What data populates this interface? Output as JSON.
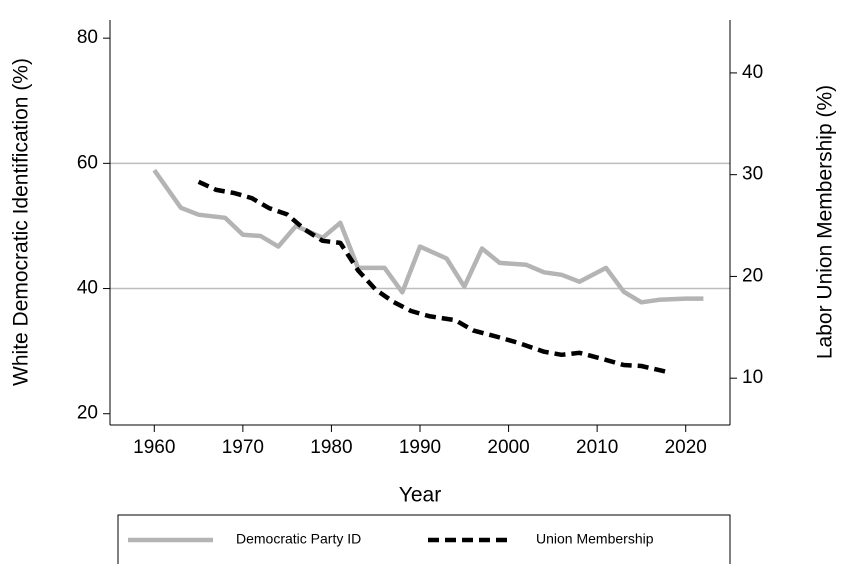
{
  "chart_data": {
    "type": "line",
    "x_label": "Year",
    "y_label": "White Democratic Identification (%)",
    "y2_label": "Labor Union Membership (%)",
    "xlim": [
      1955,
      2025
    ],
    "xticks": [
      1960,
      1970,
      1980,
      1990,
      2000,
      2010,
      2020
    ],
    "ylim": [
      18.2,
      82.9
    ],
    "yticks": [
      20,
      40,
      60,
      80
    ],
    "y2lim": [
      5.4,
      45.2
    ],
    "y2ticks": [
      10,
      20,
      30,
      40
    ],
    "grid": true,
    "legend": "bottom",
    "series": [
      {
        "name": "Democratic Party ID",
        "color": "#b4b4b4",
        "dashed": false,
        "x": [
          1960,
          1963,
          1965,
          1968,
          1970,
          1972,
          1974,
          1976,
          1979,
          1981,
          1983,
          1986,
          1988,
          1990,
          1993,
          1995,
          1997,
          1999,
          2002,
          2004,
          2006,
          2008,
          2011,
          2013,
          2015,
          2017,
          2020,
          2022
        ],
        "values": [
          58.9,
          52.9,
          51.8,
          51.3,
          48.6,
          48.4,
          46.7,
          50.0,
          48.1,
          50.5,
          43.3,
          43.3,
          39.4,
          46.7,
          44.8,
          40.3,
          46.4,
          44.1,
          43.8,
          42.6,
          42.2,
          41.1,
          43.3,
          39.5,
          37.8,
          38.2,
          38.4,
          38.4
        ]
      },
      {
        "name": "Union Membership",
        "color": "#000000",
        "dashed": true,
        "axis": "y2",
        "x": [
          1965,
          1967,
          1969,
          1971,
          1973,
          1975,
          1977,
          1979,
          1981,
          1983,
          1985,
          1987,
          1989,
          1991,
          1994,
          1996,
          1999,
          2001,
          2004,
          2006,
          2008,
          2011,
          2013,
          2015,
          2017,
          2018
        ],
        "values": [
          29.3,
          28.5,
          28.2,
          27.7,
          26.7,
          26.1,
          24.6,
          23.5,
          23.3,
          20.6,
          18.7,
          17.5,
          16.6,
          16.1,
          15.7,
          14.7,
          14.0,
          13.5,
          12.6,
          12.3,
          12.5,
          11.8,
          11.3,
          11.2,
          10.8,
          10.6
        ]
      }
    ]
  }
}
